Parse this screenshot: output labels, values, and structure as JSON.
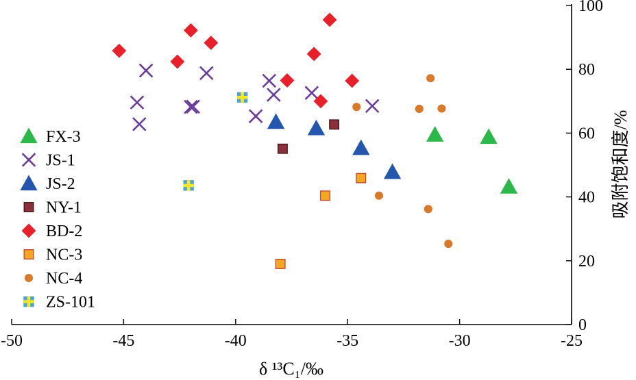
{
  "chart_data": {
    "type": "scatter",
    "xlabel": "δ ¹³C₁/‰",
    "ylabel": "吸附饱和度/%",
    "xlim": [
      -50,
      -25
    ],
    "ylim": [
      0,
      100
    ],
    "x_ticks": [
      "-50",
      "-45",
      "-40",
      "-35",
      "-30",
      "-25"
    ],
    "y_ticks": [
      "0",
      "20",
      "40",
      "60",
      "80",
      "100"
    ],
    "y_axis_side": "right",
    "grid": false,
    "legend_position": "left",
    "series": [
      {
        "name": "FX-3",
        "marker": "triangle",
        "color": "#2db84a",
        "points": [
          [
            -31.1,
            59.5
          ],
          [
            -28.7,
            58.8
          ],
          [
            -27.8,
            43.2
          ]
        ]
      },
      {
        "name": "JS-1",
        "marker": "x",
        "color": "#6a3d9a",
        "points": [
          [
            -44.4,
            69.6
          ],
          [
            -44.3,
            62.8
          ],
          [
            -44.0,
            79.6
          ],
          [
            -42.0,
            68.2
          ],
          [
            -41.9,
            68.3
          ],
          [
            -41.3,
            78.8
          ],
          [
            -39.1,
            65.3
          ],
          [
            -38.5,
            76.4
          ],
          [
            -38.3,
            72.0
          ],
          [
            -36.6,
            72.6
          ],
          [
            -33.9,
            68.5
          ]
        ]
      },
      {
        "name": "JS-2",
        "marker": "triangle",
        "color": "#2456ae",
        "points": [
          [
            -38.2,
            63.5
          ],
          [
            -36.4,
            61.5
          ],
          [
            -34.4,
            55.3
          ],
          [
            -33.0,
            47.8
          ]
        ]
      },
      {
        "name": "NY-1",
        "marker": "square",
        "color": "#8b2f3a",
        "points": [
          [
            -37.9,
            55.1
          ],
          [
            -35.6,
            62.7
          ]
        ]
      },
      {
        "name": "BD-2",
        "marker": "diamond",
        "color": "#e8202a",
        "points": [
          [
            -45.2,
            85.8
          ],
          [
            -42.6,
            82.4
          ],
          [
            -42.0,
            92.2
          ],
          [
            -41.1,
            88.3
          ],
          [
            -37.7,
            76.5
          ],
          [
            -36.5,
            84.8
          ],
          [
            -36.2,
            70.0
          ],
          [
            -35.8,
            95.5
          ],
          [
            -34.8,
            76.4
          ]
        ]
      },
      {
        "name": "NC-3",
        "marker": "square",
        "color": "#f5a623",
        "points": [
          [
            -38.0,
            19.0
          ],
          [
            -36.0,
            40.4
          ],
          [
            -34.4,
            45.9
          ]
        ]
      },
      {
        "name": "NC-4",
        "marker": "circle",
        "color": "#d97a2b",
        "points": [
          [
            -34.6,
            68.2
          ],
          [
            -33.6,
            40.4
          ],
          [
            -31.8,
            67.6
          ],
          [
            -31.3,
            77.2
          ],
          [
            -30.8,
            67.7
          ],
          [
            -31.4,
            36.2
          ],
          [
            -30.5,
            25.3
          ]
        ]
      },
      {
        "name": "ZS-101",
        "marker": "plus",
        "color": "#f2e82a",
        "points": [
          [
            -39.7,
            71.2
          ],
          [
            -42.1,
            43.6
          ]
        ]
      }
    ]
  }
}
